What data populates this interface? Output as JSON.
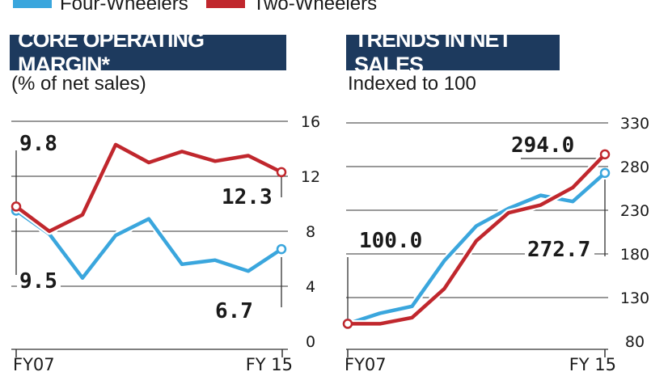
{
  "legend": [
    {
      "label": "Four-Wheelers",
      "color": "#3aa6dd"
    },
    {
      "label": "Two-Wheelers",
      "color": "#c0272d"
    }
  ],
  "chart_data": [
    {
      "type": "line",
      "title": "CORE OPERATING MARGIN*",
      "subtitle": "(% of net sales)",
      "x_labels": [
        "FY07",
        "",
        "",
        "",
        "",
        "",
        "",
        "",
        "FY 15"
      ],
      "ylim": [
        0,
        16
      ],
      "yticks": [
        "0",
        "4",
        "8",
        "12",
        "16"
      ],
      "series": [
        {
          "name": "Four-Wheelers",
          "color": "#3aa6dd",
          "values": [
            9.5,
            7.8,
            4.6,
            7.7,
            8.9,
            5.6,
            5.9,
            5.1,
            6.7
          ]
        },
        {
          "name": "Two-Wheelers",
          "color": "#c0272d",
          "values": [
            9.8,
            8.0,
            9.2,
            14.3,
            13.0,
            13.8,
            13.1,
            13.5,
            12.3
          ]
        }
      ],
      "annotations": [
        {
          "text": "9.8",
          "series": "Two-Wheelers",
          "index": 0
        },
        {
          "text": "12.3",
          "series": "Two-Wheelers",
          "index": 8
        },
        {
          "text": "9.5",
          "series": "Four-Wheelers",
          "index": 0
        },
        {
          "text": "6.7",
          "series": "Four-Wheelers",
          "index": 8
        }
      ]
    },
    {
      "type": "line",
      "title": "TRENDS IN NET SALES",
      "subtitle": "Indexed to 100",
      "x_labels": [
        "FY07",
        "",
        "",
        "",
        "",
        "",
        "",
        "",
        "FY 15"
      ],
      "ylim": [
        80,
        330
      ],
      "yticks": [
        "80",
        "130",
        "180",
        "230",
        "280",
        "330"
      ],
      "series": [
        {
          "name": "Four-Wheelers",
          "color": "#3aa6dd",
          "values": [
            100.0,
            112,
            120,
            172,
            212,
            232,
            247,
            240,
            272.7
          ]
        },
        {
          "name": "Two-Wheelers",
          "color": "#c0272d",
          "values": [
            100.0,
            100,
            107,
            140,
            195,
            227,
            236,
            256,
            294.0
          ]
        }
      ],
      "annotations": [
        {
          "text": "294.0",
          "series": "Two-Wheelers",
          "index": 8
        },
        {
          "text": "100.0",
          "series": "Four-Wheelers",
          "index": 0
        },
        {
          "text": "272.7",
          "series": "Four-Wheelers",
          "index": 8
        }
      ]
    }
  ]
}
